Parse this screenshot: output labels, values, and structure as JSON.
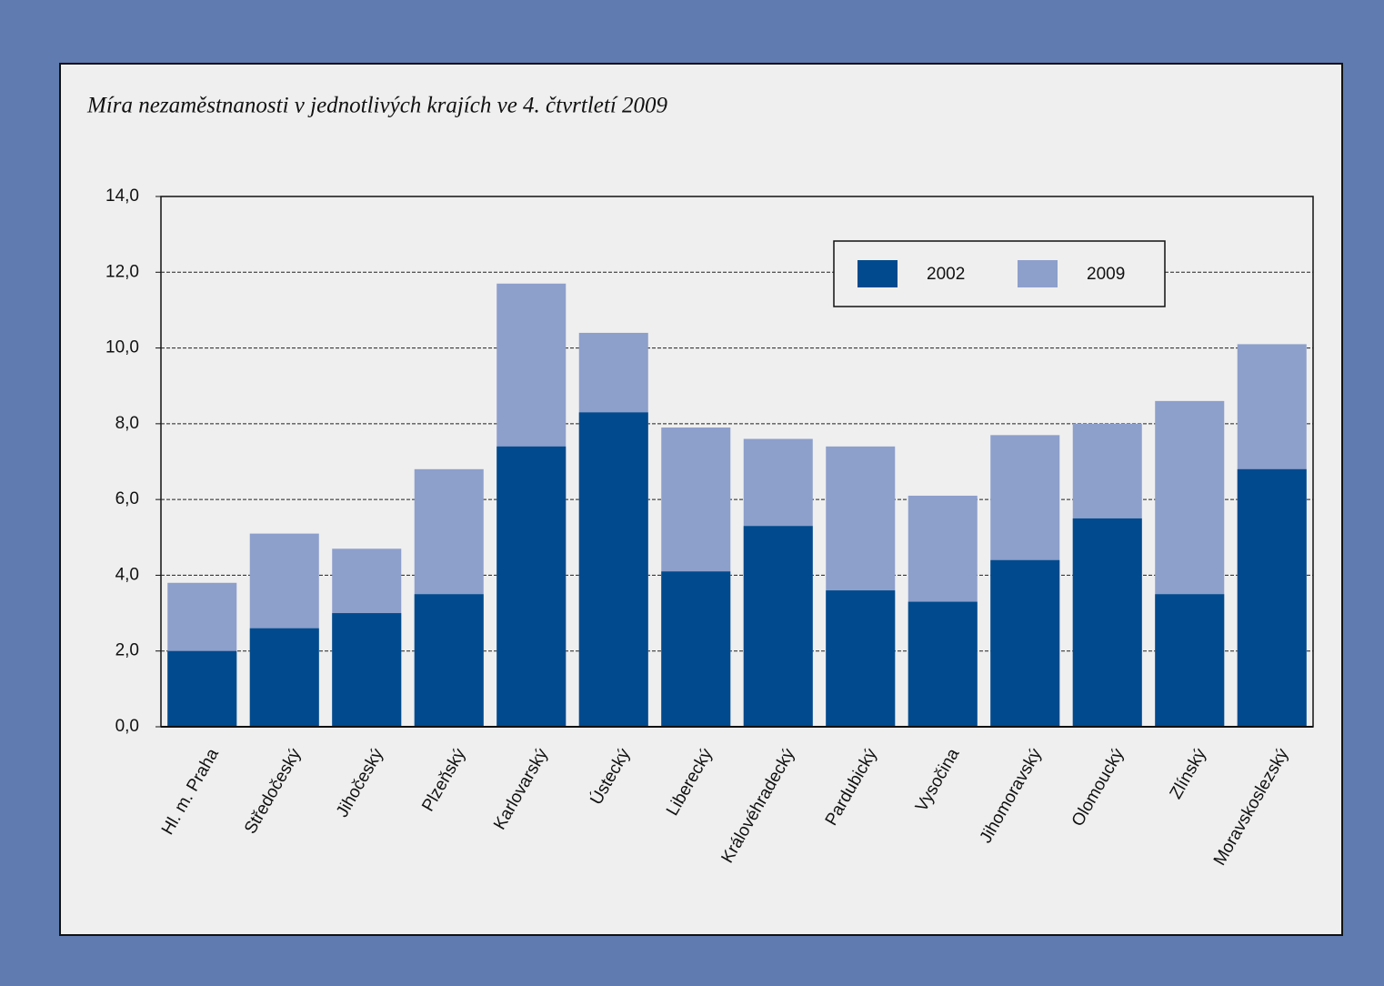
{
  "chart_data": {
    "type": "bar",
    "title": "Míra nezaměstnanosti v jednotlivých krajích ve 4. čtvrtletí 2009",
    "categories": [
      "Hl. m. Praha",
      "Středočeský",
      "Jihočeský",
      "Plzeňský",
      "Karlovarský",
      "Ústecký",
      "Liberecký",
      "Královéhradecký",
      "Pardubický",
      "Vysočina",
      "Jihomoravský",
      "Olomoucký",
      "Zlínský",
      "Moravskoslezský"
    ],
    "series": [
      {
        "name": "2002",
        "color": "#004a8d",
        "values": [
          2.0,
          2.6,
          3.0,
          3.5,
          7.4,
          8.3,
          4.1,
          5.3,
          3.6,
          3.3,
          4.4,
          5.5,
          3.5,
          6.8
        ]
      },
      {
        "name": "2009",
        "color": "#8d9fcb",
        "values": [
          3.8,
          5.1,
          4.7,
          6.8,
          11.7,
          10.4,
          7.9,
          7.6,
          7.4,
          6.1,
          7.7,
          8.0,
          8.6,
          10.1
        ]
      }
    ],
    "ylim": [
      0,
      14
    ],
    "yticks": [
      {
        "value": 0,
        "label": "0,0"
      },
      {
        "value": 2,
        "label": "2,0"
      },
      {
        "value": 4,
        "label": "4,0"
      },
      {
        "value": 6,
        "label": "6,0"
      },
      {
        "value": 8,
        "label": "8,0"
      },
      {
        "value": 10,
        "label": "10,0"
      },
      {
        "value": 12,
        "label": "12,0"
      },
      {
        "value": 14,
        "label": "14,0"
      }
    ],
    "grid": true,
    "legend": "upper right"
  }
}
